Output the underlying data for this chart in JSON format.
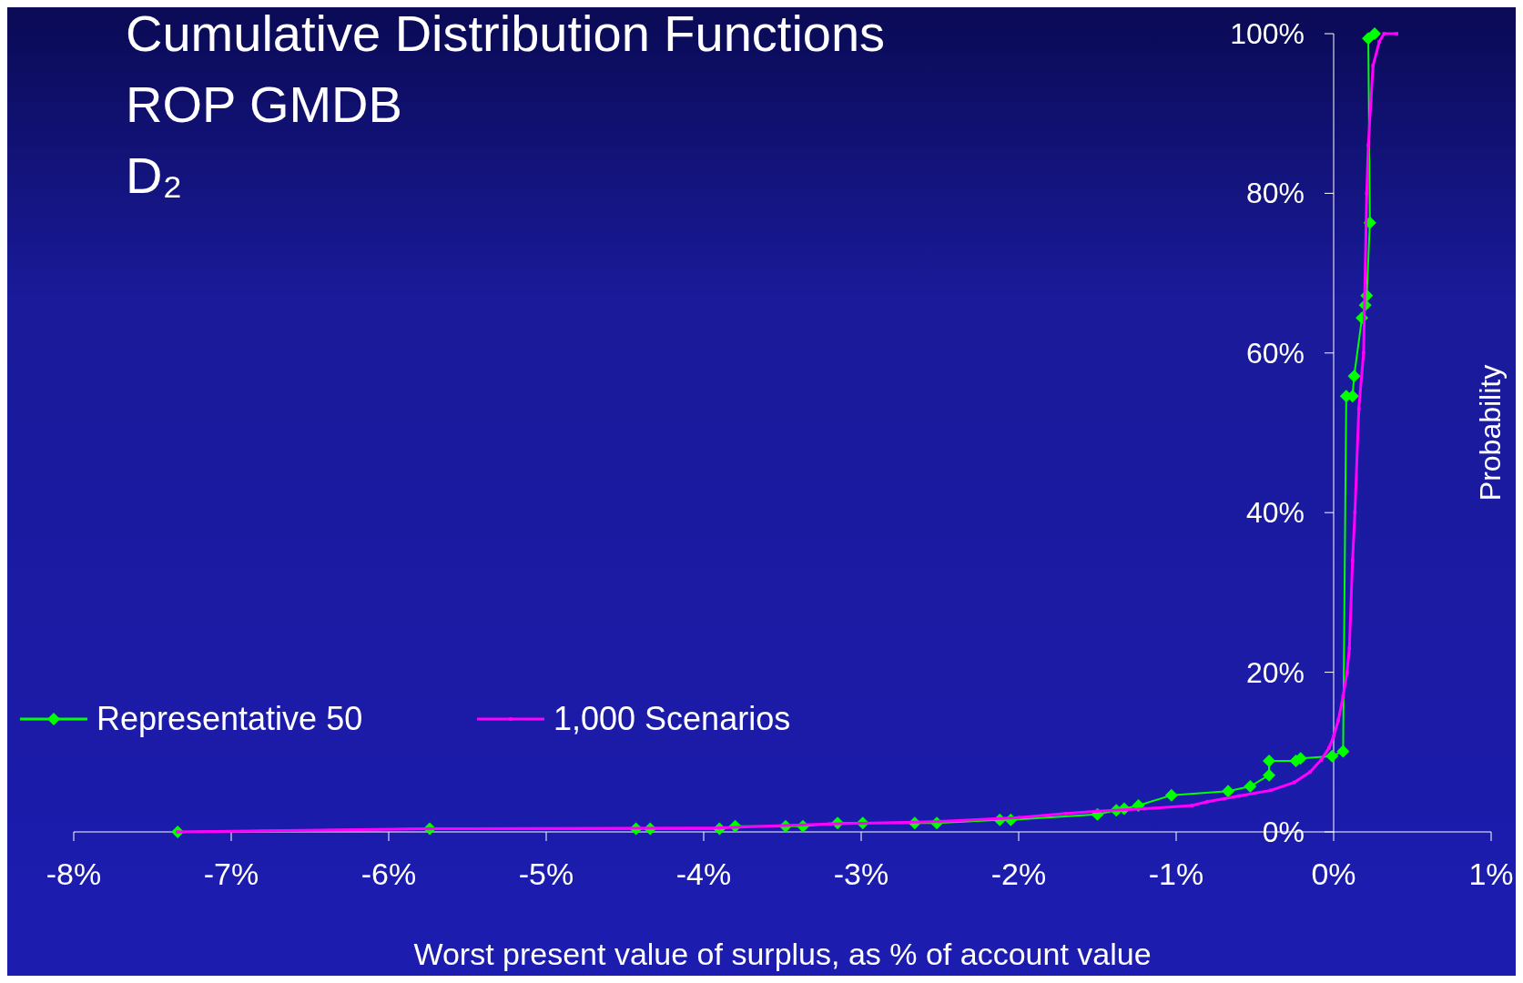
{
  "chart_data": {
    "type": "line",
    "title": "Cumulative Distribution Functions\nROP GMDB\nD₂",
    "xlabel": "Worst present value of surplus, as % of account value",
    "ylabel": "Probability",
    "xlim": [
      -8,
      1
    ],
    "xticks": [
      {
        "value": -8,
        "label": "-8%"
      },
      {
        "value": -7,
        "label": "-7%"
      },
      {
        "value": -6,
        "label": "-6%"
      },
      {
        "value": -5,
        "label": "-5%"
      },
      {
        "value": -4,
        "label": "-4%"
      },
      {
        "value": -3,
        "label": "-3%"
      },
      {
        "value": -2,
        "label": "-2%"
      },
      {
        "value": -1,
        "label": "-1%"
      },
      {
        "value": 0,
        "label": "0%"
      },
      {
        "value": 1,
        "label": "1%"
      }
    ],
    "ylim": [
      0,
      100
    ],
    "yticks": [
      {
        "value": 0,
        "label": "0%"
      },
      {
        "value": 20,
        "label": "20%"
      },
      {
        "value": 40,
        "label": "40%"
      },
      {
        "value": 60,
        "label": "60%"
      },
      {
        "value": 80,
        "label": "80%"
      },
      {
        "value": 100,
        "label": "100%"
      }
    ],
    "grid": false,
    "legend": "bottom left",
    "series": [
      {
        "name": "Representative 50",
        "color": "#00ff00",
        "marker": "diamond",
        "x": [
          -7.34,
          -5.74,
          -4.43,
          -4.34,
          -3.9,
          -3.8,
          -3.48,
          -3.37,
          -3.15,
          -2.99,
          -2.66,
          -2.52,
          -2.12,
          -2.05,
          -1.5,
          -1.38,
          -1.33,
          -1.24,
          -1.03,
          -0.67,
          -0.53,
          -0.41,
          -0.41,
          -0.24,
          -0.21,
          -0.01,
          0.06,
          0.08,
          0.12,
          0.13,
          0.18,
          0.2,
          0.21,
          0.23,
          0.22,
          0.26
        ],
        "values": [
          0,
          0.4,
          0.4,
          0.4,
          0.4,
          0.7,
          0.7,
          0.7,
          1.1,
          1.1,
          1.1,
          1.1,
          1.5,
          1.5,
          2.2,
          2.7,
          2.9,
          3.3,
          4.6,
          5.1,
          5.7,
          7.1,
          8.9,
          8.9,
          9.2,
          9.5,
          10.1,
          54.6,
          54.6,
          57.1,
          64.4,
          66,
          67.2,
          76.3,
          99.4,
          100
        ]
      },
      {
        "name": "1,000 Scenarios",
        "color": "#ff00ff",
        "marker": "square",
        "x": [
          -7.34,
          -5.74,
          -3.9,
          -3.2,
          -2.5,
          -2.0,
          -1.7,
          -1.5,
          -1.2,
          -0.9,
          -0.8,
          -0.6,
          -0.4,
          -0.25,
          -0.15,
          -0.08,
          -0.03,
          0,
          0.03,
          0.06,
          0.085,
          0.1,
          0.12,
          0.135,
          0.16,
          0.19,
          0.21,
          0.22,
          0.25,
          0.29,
          0.32,
          0.4
        ],
        "values": [
          0,
          0.4,
          0.5,
          1.0,
          1.3,
          1.8,
          2.3,
          2.6,
          2.9,
          3.3,
          3.8,
          4.5,
          5.2,
          6.2,
          7.5,
          9.0,
          10.5,
          12,
          14,
          17,
          20,
          23,
          34,
          40,
          53,
          60,
          80,
          86,
          96,
          99,
          100,
          100
        ]
      }
    ]
  }
}
